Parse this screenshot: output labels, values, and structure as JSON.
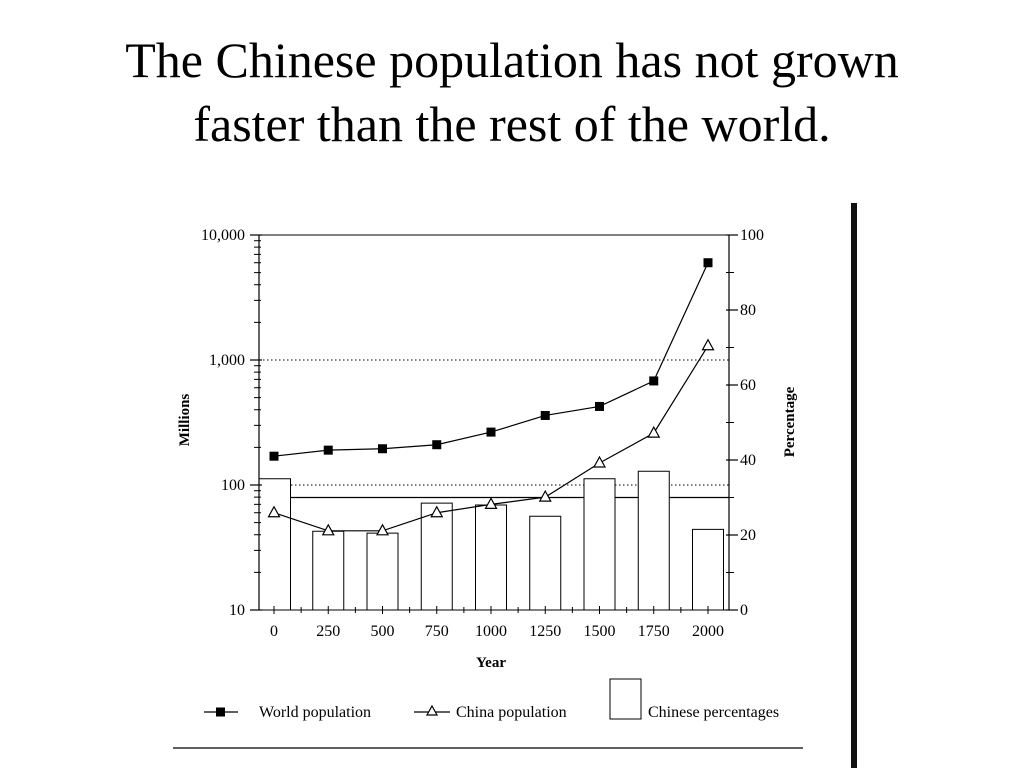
{
  "slide": {
    "title_line1": "The Chinese population has not grown",
    "title_line2": "faster than the rest of the world."
  },
  "chart_data": {
    "type": "line",
    "xlabel": "Year",
    "ylabel_left": "Millions",
    "ylabel_right": "Percentage",
    "left_axis": {
      "scale": "log",
      "range": [
        10,
        10000
      ],
      "ticks": [
        "10",
        "100",
        "1,000",
        "10,000"
      ]
    },
    "right_axis": {
      "scale": "linear",
      "range": [
        0,
        100
      ],
      "ticks": [
        "0",
        "20",
        "40",
        "60",
        "80",
        "100"
      ]
    },
    "categories": [
      "0",
      "250",
      "500",
      "750",
      "1000",
      "1250",
      "1500",
      "1750",
      "2000"
    ],
    "reference_lines": [
      {
        "axis": "left",
        "value": 1000,
        "style": "dotted"
      },
      {
        "axis": "left",
        "value": 100,
        "style": "dotted"
      },
      {
        "axis": "right",
        "value": 30,
        "style": "solid"
      }
    ],
    "series": [
      {
        "name": "World population",
        "axis": "left",
        "kind": "line",
        "marker": "square",
        "values": [
          170,
          190,
          195,
          210,
          265,
          360,
          425,
          680,
          6000
        ]
      },
      {
        "name": "China population",
        "axis": "left",
        "kind": "line",
        "marker": "triangle",
        "values": [
          60,
          43,
          43,
          60,
          70,
          80,
          150,
          260,
          1300
        ]
      },
      {
        "name": "Chinese percentages",
        "axis": "right",
        "kind": "bar",
        "values": [
          35,
          21,
          20.5,
          28.5,
          28,
          25,
          35,
          37,
          21.5
        ]
      }
    ],
    "legend_position": "bottom",
    "grid": false
  }
}
